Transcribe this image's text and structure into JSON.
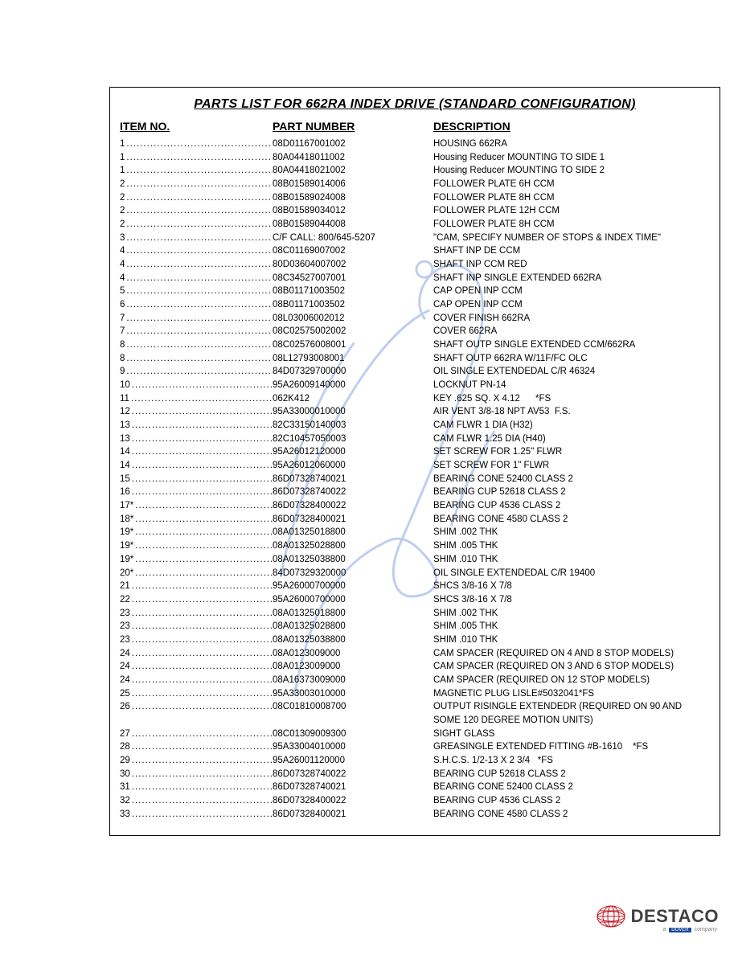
{
  "title": "PARTS LIST FOR 662RA INDEX DRIVE (STANDARD CONFIGURATION)",
  "headers": {
    "item": "ITEM NO.",
    "part": "PART NUMBER",
    "desc": "DESCRIPTION"
  },
  "rows": [
    {
      "item": "1",
      "part": "08D01167001002",
      "desc": "HOUSING 662RA"
    },
    {
      "item": "1",
      "part": "80A04418011002",
      "desc": "Housing Reducer MOUNTING TO SIDE 1"
    },
    {
      "item": "1",
      "part": "80A04418021002",
      "desc": "Housing Reducer MOUNTING TO SIDE 2"
    },
    {
      "item": "2",
      "part": "08B01589014006",
      "desc": "FOLLOWER PLATE 6H CCM"
    },
    {
      "item": "2",
      "part": "08B01589024008",
      "desc": "FOLLOWER PLATE 8H CCM"
    },
    {
      "item": "2",
      "part": "08B01589034012",
      "desc": "FOLLOWER PLATE 12H CCM"
    },
    {
      "item": "2",
      "part": "08B01589044008",
      "desc": "FOLLOWER PLATE 8H CCM"
    },
    {
      "item": "3",
      "part": "C/F CALL: 800/645-5207",
      "desc": "\"CAM, SPECIFY NUMBER OF STOPS & INDEX TIME\""
    },
    {
      "item": "4",
      "part": "08C01169007002",
      "desc": "SHAFT INP DE CCM"
    },
    {
      "item": "4",
      "part": "80D03604007002",
      "desc": "SHAFT INP CCM RED"
    },
    {
      "item": "4",
      "part": "08C34527007001",
      "desc": "SHAFT INP SINGLE EXTENDED 662RA"
    },
    {
      "item": "5",
      "part": "08B01171003502",
      "desc": "CAP OPEN INP CCM"
    },
    {
      "item": "6",
      "part": "08B01171003502",
      "desc": "CAP OPEN INP CCM"
    },
    {
      "item": "7",
      "part": "08L03006002012",
      "desc": "COVER FINISH 662RA"
    },
    {
      "item": "7",
      "part": "08C02575002002",
      "desc": "COVER 662RA"
    },
    {
      "item": "8",
      "part": "08C02576008001",
      "desc": "SHAFT OUTP SINGLE EXTENDED CCM/662RA"
    },
    {
      "item": "8",
      "part": "08L12793008001",
      "desc": "SHAFT OUTP 662RA W/11F/FC OLC"
    },
    {
      "item": "9",
      "part": "84D07329700000",
      "desc": "OIL SINGLE EXTENDEDAL C/R 46324"
    },
    {
      "item": "10",
      "part": "95A26009140000",
      "desc": "LOCKNUT PN-14"
    },
    {
      "item": "11",
      "part": "062K412",
      "desc": "KEY .625 SQ. X 4.12      *FS"
    },
    {
      "item": "12",
      "part": "95A33000010000",
      "desc": "AIR VENT 3/8-18 NPT AV53  F.S."
    },
    {
      "item": "13",
      "part": "82C33150140003",
      "desc": "CAM FLWR 1 DIA (H32)"
    },
    {
      "item": "13",
      "part": "82C10457050003",
      "desc": "CAM FLWR 1.25 DIA (H40)"
    },
    {
      "item": "14",
      "part": "95A26012120000",
      "desc": "SET SCREW FOR 1.25\" FLWR"
    },
    {
      "item": "14",
      "part": "95A26012060000",
      "desc": "SET SCREW FOR 1\" FLWR"
    },
    {
      "item": "15",
      "part": "86D07328740021",
      "desc": "BEARING CONE 52400 CLASS 2"
    },
    {
      "item": "16",
      "part": "86D07328740022",
      "desc": "BEARING CUP 52618 CLASS 2"
    },
    {
      "item": "17*",
      "part": "86D07328400022",
      "desc": "BEARING CUP 4536 CLASS 2"
    },
    {
      "item": "18*",
      "part": "86D07328400021",
      "desc": "BEARING CONE 4580 CLASS 2"
    },
    {
      "item": "19*",
      "part": "08A01325018800",
      "desc": "SHIM .002 THK"
    },
    {
      "item": "19*",
      "part": "08A01325028800",
      "desc": "SHIM .005 THK"
    },
    {
      "item": "19*",
      "part": "08A01325038800",
      "desc": "SHIM .010 THK"
    },
    {
      "item": "20*",
      "part": "84D07329320000",
      "desc": "OIL SINGLE EXTENDEDAL C/R 19400"
    },
    {
      "item": "21",
      "part": "95A26000700000",
      "desc": "SHCS 3/8-16 X 7/8"
    },
    {
      "item": "22",
      "part": "95A26000700000",
      "desc": "SHCS 3/8-16 X 7/8"
    },
    {
      "item": "23",
      "part": "08A01325018800",
      "desc": "SHIM .002 THK"
    },
    {
      "item": "23",
      "part": "08A01325028800",
      "desc": "SHIM .005 THK"
    },
    {
      "item": "23",
      "part": "08A01325038800",
      "desc": "SHIM .010 THK"
    },
    {
      "item": "24",
      "part": "08A0123009000",
      "desc": "CAM SPACER (REQUIRED ON 4 AND 8 STOP MODELS)"
    },
    {
      "item": "24",
      "part": "08A0123009000",
      "desc": "CAM SPACER (REQUIRED ON 3 AND 6 STOP MODELS)"
    },
    {
      "item": "24",
      "part": "08A16373009000",
      "desc": "CAM SPACER (REQUIRED ON 12 STOP MODELS)"
    },
    {
      "item": "25",
      "part": "95A33003010000",
      "desc": "MAGNETIC PLUG LISLE#5032041*FS"
    },
    {
      "item": "26",
      "part": "08C01810008700",
      "desc": "OUTPUT RISINGLE EXTENDEDR (REQUIRED ON 90 AND\nSOME 120 DEGREE MOTION UNITS)"
    },
    {
      "item": "27",
      "part": "08C01309009300",
      "desc": "SIGHT GLASS"
    },
    {
      "item": "28",
      "part": "95A33004010000",
      "desc": "GREASINGLE EXTENDED FITTING #B-1610    *FS"
    },
    {
      "item": "29",
      "part": "95A26001120000",
      "desc": "S.H.C.S. 1/2-13 X 2 3/4   *FS"
    },
    {
      "item": "30",
      "part": "86D07328740022",
      "desc": "BEARING CUP 52618 CLASS 2"
    },
    {
      "item": "31",
      "part": "86D07328740021",
      "desc": "BEARING CONE 52400 CLASS 2"
    },
    {
      "item": "32",
      "part": "86D07328400022",
      "desc": "BEARING CUP 4536 CLASS 2"
    },
    {
      "item": "33",
      "part": "86D07328400021",
      "desc": "BEARING CONE 4580 CLASS 2"
    }
  ],
  "watermark": {
    "stroke": "#8aa7e6",
    "opacity": 0.55
  },
  "logo": {
    "text": "DESTACO",
    "sub_a": "a",
    "sub_brand": "DOVER",
    "sub_b": "company",
    "globe_color": "#c31b23"
  }
}
